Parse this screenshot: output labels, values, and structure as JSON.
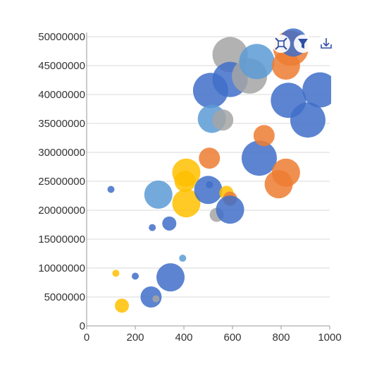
{
  "toolbar": {
    "items": [
      {
        "name": "reset-zoom-button",
        "icon": "reset-zoom-icon"
      },
      {
        "name": "filter-button",
        "icon": "filter-icon"
      },
      {
        "name": "download-button",
        "icon": "download-icon"
      }
    ]
  },
  "colors": {
    "blue": "#3f6fc9",
    "lightblue": "#5b9bd5",
    "orange": "#ed7d31",
    "gray": "#a5a5a5",
    "gold": "#ffc000",
    "grid": "#d9d9d9",
    "axis": "#999999",
    "toolbar": "#2f4fa3"
  },
  "chart_data": {
    "type": "scatter",
    "subtype": "bubble",
    "title": "",
    "xlabel": "",
    "ylabel": "",
    "xlim": [
      0,
      1000
    ],
    "ylim": [
      0,
      50000000
    ],
    "x_ticks": [
      "0",
      "200",
      "400",
      "600",
      "800",
      "1000"
    ],
    "y_ticks": [
      "0",
      "5000000",
      "10000000",
      "15000000",
      "20000000",
      "25000000",
      "30000000",
      "35000000",
      "40000000",
      "45000000",
      "50000000"
    ],
    "grid": "horizontal",
    "legend": "none",
    "points": [
      {
        "x": 100,
        "y": 23600000,
        "size": 5,
        "color": "blue"
      },
      {
        "x": 120,
        "y": 9100000,
        "size": 5,
        "color": "gold"
      },
      {
        "x": 145,
        "y": 3500000,
        "size": 10,
        "color": "gold"
      },
      {
        "x": 200,
        "y": 8600000,
        "size": 5,
        "color": "blue"
      },
      {
        "x": 265,
        "y": 5000000,
        "size": 15,
        "color": "blue"
      },
      {
        "x": 285,
        "y": 4700000,
        "size": 5,
        "color": "gray"
      },
      {
        "x": 270,
        "y": 17000000,
        "size": 5,
        "color": "blue"
      },
      {
        "x": 295,
        "y": 22700000,
        "size": 20,
        "color": "lightblue"
      },
      {
        "x": 340,
        "y": 17700000,
        "size": 10,
        "color": "blue"
      },
      {
        "x": 345,
        "y": 8400000,
        "size": 20,
        "color": "blue"
      },
      {
        "x": 395,
        "y": 11700000,
        "size": 5,
        "color": "lightblue"
      },
      {
        "x": 410,
        "y": 26500000,
        "size": 20,
        "color": "gold"
      },
      {
        "x": 405,
        "y": 25000000,
        "size": 15,
        "color": "gold"
      },
      {
        "x": 410,
        "y": 21200000,
        "size": 20,
        "color": "gold"
      },
      {
        "x": 500,
        "y": 23500000,
        "size": 20,
        "color": "blue"
      },
      {
        "x": 505,
        "y": 24400000,
        "size": 5,
        "color": "blue"
      },
      {
        "x": 505,
        "y": 29000000,
        "size": 15,
        "color": "orange"
      },
      {
        "x": 535,
        "y": 19200000,
        "size": 10,
        "color": "gray"
      },
      {
        "x": 575,
        "y": 23000000,
        "size": 10,
        "color": "gold"
      },
      {
        "x": 590,
        "y": 22000000,
        "size": 10,
        "color": "orange"
      },
      {
        "x": 590,
        "y": 20100000,
        "size": 20,
        "color": "blue"
      },
      {
        "x": 510,
        "y": 40700000,
        "size": 25,
        "color": "blue"
      },
      {
        "x": 515,
        "y": 35800000,
        "size": 20,
        "color": "lightblue"
      },
      {
        "x": 560,
        "y": 35600000,
        "size": 15,
        "color": "gray"
      },
      {
        "x": 590,
        "y": 46900000,
        "size": 25,
        "color": "gray"
      },
      {
        "x": 590,
        "y": 42600000,
        "size": 25,
        "color": "blue"
      },
      {
        "x": 670,
        "y": 43200000,
        "size": 25,
        "color": "gray"
      },
      {
        "x": 700,
        "y": 45700000,
        "size": 25,
        "color": "lightblue"
      },
      {
        "x": 710,
        "y": 29000000,
        "size": 25,
        "color": "blue"
      },
      {
        "x": 730,
        "y": 32900000,
        "size": 15,
        "color": "orange"
      },
      {
        "x": 790,
        "y": 24500000,
        "size": 20,
        "color": "orange"
      },
      {
        "x": 820,
        "y": 26500000,
        "size": 20,
        "color": "orange"
      },
      {
        "x": 820,
        "y": 45000000,
        "size": 20,
        "color": "orange"
      },
      {
        "x": 840,
        "y": 48000000,
        "size": 25,
        "color": "orange"
      },
      {
        "x": 850,
        "y": 49000000,
        "size": 20,
        "color": "blue"
      },
      {
        "x": 830,
        "y": 39000000,
        "size": 25,
        "color": "blue"
      },
      {
        "x": 910,
        "y": 35600000,
        "size": 25,
        "color": "blue"
      },
      {
        "x": 960,
        "y": 40800000,
        "size": 25,
        "color": "blue"
      }
    ]
  }
}
